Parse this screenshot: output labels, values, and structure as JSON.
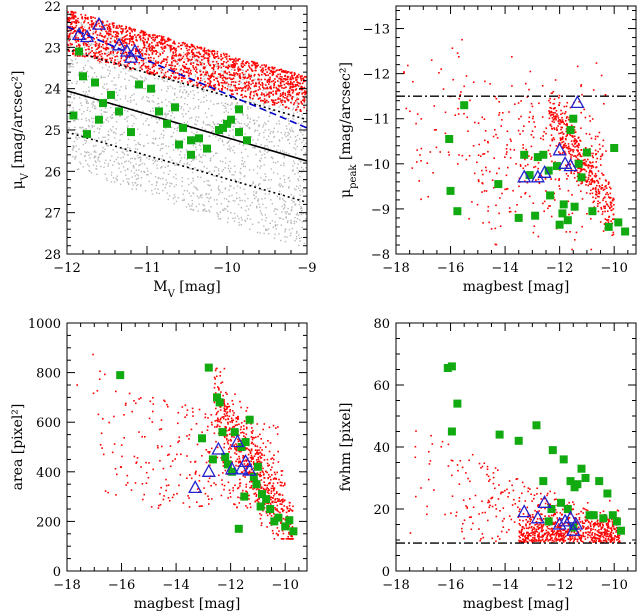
{
  "chart_data": [
    {
      "type": "scatter",
      "id": "p1",
      "xlabel": "M",
      "xlabel_sub": "V",
      "xlabel_unit": " [mag]",
      "ylabel": "μ",
      "ylabel_sub": "V",
      "ylabel_unit": " [mag/arcsec²]",
      "xlim": [
        -12,
        -9
      ],
      "ylim": [
        28,
        22
      ],
      "xticks": [
        -12,
        -11,
        -10,
        -9
      ],
      "xtick_labels": [
        "−12",
        "−11",
        "−10",
        "−9"
      ],
      "yticks": [
        22,
        23,
        24,
        25,
        26,
        27,
        28
      ],
      "ytick_labels": [
        "22",
        "23",
        "24",
        "25",
        "26",
        "27",
        "28"
      ],
      "xminor": 0.2,
      "yminor": 0.2,
      "lines": [
        {
          "name": "solid",
          "x": [
            -12,
            -9
          ],
          "y": [
            24.05,
            25.75
          ],
          "style": "solid",
          "color": "#000000"
        },
        {
          "name": "dotted-upper",
          "x": [
            -12,
            -9
          ],
          "y": [
            23.05,
            24.75
          ],
          "style": "dotted",
          "color": "#000000"
        },
        {
          "name": "dotted-lower",
          "x": [
            -12,
            -9
          ],
          "y": [
            25.05,
            26.75
          ],
          "style": "dotted",
          "color": "#000000"
        },
        {
          "name": "dashed-blue",
          "x": [
            -12,
            -9
          ],
          "y": [
            22.5,
            24.95
          ],
          "style": "dashed",
          "color": "#0000cc"
        }
      ],
      "grey_cloud": {
        "count": 1900,
        "color": "#b8b8b8",
        "x_range": [
          -12,
          -9
        ],
        "y_top": [
          22.3,
          24.0
        ],
        "y_bottom": [
          25.9,
          27.9
        ]
      },
      "red_cloud": {
        "count": 1700,
        "color": "#ff0000",
        "x_range": [
          -12,
          -9
        ],
        "y_top": [
          22.1,
          23.7
        ],
        "y_bottom": [
          23.15,
          24.6
        ]
      },
      "squares": {
        "color": "#11aa11",
        "x": [
          -11.92,
          -11.85,
          -11.65,
          -11.8,
          -11.55,
          -11.45,
          -11.35,
          -11.1,
          -10.95,
          -10.85,
          -10.75,
          -10.65,
          -10.55,
          -10.45,
          -10.35,
          -10.25,
          -10.1,
          -10.05,
          -9.95,
          -9.85,
          -9.75,
          -11.75,
          -11.6,
          -10.6,
          -10.45,
          -11.2,
          -10.0,
          -9.85
        ],
        "y": [
          24.65,
          23.1,
          23.85,
          23.7,
          24.35,
          24.15,
          24.55,
          23.9,
          24.0,
          24.55,
          24.85,
          24.45,
          24.95,
          25.25,
          25.2,
          25.45,
          25.0,
          24.95,
          24.75,
          25.05,
          25.25,
          25.1,
          24.75,
          25.35,
          25.6,
          25.05,
          24.85,
          24.5
        ]
      },
      "triangles": {
        "color": "#2222cc",
        "x": [
          -11.85,
          -11.75,
          -11.6,
          -11.35,
          -11.25,
          -11.2,
          -11.15
        ],
        "y": [
          22.7,
          22.75,
          22.45,
          22.95,
          23.1,
          23.25,
          23.1
        ]
      }
    },
    {
      "type": "scatter",
      "id": "p2",
      "xlabel": "magbest [mag]",
      "ylabel": "μ",
      "ylabel_sub": "peak",
      "ylabel_unit": " [mag/arcsec²]",
      "xlim": [
        -18,
        -9.2
      ],
      "ylim": [
        -8,
        -13.5
      ],
      "xticks": [
        -18,
        -16,
        -14,
        -12,
        -10
      ],
      "xtick_labels": [
        "−18",
        "−16",
        "−14",
        "−12",
        "−10"
      ],
      "yticks": [
        -13,
        -12,
        -11,
        -10,
        -9,
        -8
      ],
      "ytick_labels": [
        "−13",
        "−12",
        "−11",
        "−10",
        "−9",
        "−8"
      ],
      "xminor": 0.5,
      "yminor": 0.2,
      "hline": {
        "y": -11.5,
        "style": "dashdot",
        "color": "#000000"
      },
      "red_cloud": {
        "count": 800,
        "color": "#ff0000"
      },
      "squares": {
        "color": "#11aa11",
        "x": [
          -15.5,
          -16.05,
          -16.0,
          -15.75,
          -14.25,
          -13.5,
          -13.1,
          -12.9,
          -12.8,
          -12.6,
          -12.4,
          -12.35,
          -12.0,
          -11.9,
          -11.85,
          -11.7,
          -11.6,
          -11.5,
          -11.45,
          -11.2,
          -11.0,
          -10.8,
          -10.2,
          -10.0,
          -9.85,
          -9.6,
          -11.3,
          -12.1,
          -13.3
        ],
        "y": [
          -11.3,
          -10.55,
          -9.4,
          -8.95,
          -9.55,
          -8.8,
          -9.75,
          -8.85,
          -10.15,
          -10.2,
          -9.85,
          -9.3,
          -8.65,
          -8.9,
          -9.1,
          -8.75,
          -10.75,
          -11.0,
          -9.05,
          -9.7,
          -10.25,
          -8.95,
          -8.6,
          -10.35,
          -8.7,
          -8.5,
          -10.0,
          -9.95,
          -10.2
        ]
      },
      "triangles": {
        "color": "#2222cc",
        "x": [
          -13.3,
          -12.8,
          -12.55,
          -12.0,
          -11.8,
          -11.6,
          -11.35
        ],
        "y": [
          -9.7,
          -9.7,
          -9.8,
          -10.3,
          -10.0,
          -9.95,
          -11.35
        ]
      }
    },
    {
      "type": "scatter",
      "id": "p3",
      "xlabel": "magbest [mag]",
      "ylabel": "area [pixel²]",
      "xlim": [
        -18,
        -9.2
      ],
      "ylim": [
        0,
        1000
      ],
      "xticks": [
        -18,
        -16,
        -14,
        -12,
        -10
      ],
      "xtick_labels": [
        "−18",
        "−16",
        "−14",
        "−12",
        "−10"
      ],
      "yticks": [
        0,
        200,
        400,
        600,
        800,
        1000
      ],
      "ytick_labels": [
        "0",
        "200",
        "400",
        "600",
        "800",
        "1000"
      ],
      "xminor": 0.5,
      "yminor": 50,
      "red_cloud": {
        "count": 900,
        "color": "#ff0000"
      },
      "squares": {
        "color": "#11aa11",
        "x": [
          -16.05,
          -13.05,
          -12.8,
          -12.5,
          -12.4,
          -12.3,
          -12.2,
          -12.1,
          -11.95,
          -11.85,
          -11.6,
          -11.45,
          -11.3,
          -11.15,
          -11.0,
          -10.85,
          -10.7,
          -10.55,
          -10.4,
          -10.25,
          -10.0,
          -9.85,
          -9.7,
          -11.7,
          -12.65,
          -11.5,
          -10.9,
          -11.05
        ],
        "y": [
          790,
          535,
          820,
          700,
          680,
          560,
          460,
          430,
          400,
          560,
          500,
          520,
          610,
          380,
          420,
          310,
          290,
          250,
          200,
          215,
          180,
          205,
          160,
          170,
          450,
          300,
          260,
          350
        ]
      },
      "triangles": {
        "color": "#2222cc",
        "x": [
          -13.3,
          -12.8,
          -12.45,
          -11.95,
          -11.75,
          -11.6,
          -11.45,
          -11.3
        ],
        "y": [
          335,
          400,
          490,
          410,
          520,
          410,
          440,
          405
        ]
      }
    },
    {
      "type": "scatter",
      "id": "p4",
      "xlabel": "magbest [mag]",
      "ylabel": "fwhm [pixel]",
      "xlim": [
        -18,
        -9.2
      ],
      "ylim": [
        0,
        80
      ],
      "xticks": [
        -18,
        -16,
        -14,
        -12,
        -10
      ],
      "xtick_labels": [
        "−18",
        "−16",
        "−14",
        "−12",
        "−10"
      ],
      "yticks": [
        0,
        20,
        40,
        60,
        80
      ],
      "ytick_labels": [
        "0",
        "20",
        "40",
        "60",
        "80"
      ],
      "xminor": 0.5,
      "yminor": 5,
      "hline": {
        "y": 9,
        "style": "dashdot",
        "color": "#000000"
      },
      "red_cloud": {
        "count": 850,
        "color": "#ff0000"
      },
      "squares": {
        "color": "#11aa11",
        "x": [
          -16.1,
          -15.95,
          -15.75,
          -15.95,
          -14.2,
          -13.5,
          -12.85,
          -12.6,
          -12.3,
          -12.25,
          -11.95,
          -11.85,
          -11.7,
          -11.6,
          -11.45,
          -11.35,
          -11.2,
          -11.05,
          -10.9,
          -10.75,
          -10.55,
          -10.4,
          -10.25,
          -10.05,
          -9.9,
          -9.75,
          -12.4,
          -11.5
        ],
        "y": [
          65.5,
          45,
          54,
          66,
          44,
          42,
          47,
          29,
          20,
          39,
          22,
          36,
          20,
          29,
          27,
          28,
          33,
          30,
          18,
          18,
          29,
          17,
          25,
          18,
          16,
          13,
          16,
          14
        ]
      },
      "triangles": {
        "color": "#2222cc",
        "x": [
          -13.3,
          -12.8,
          -12.55,
          -12.0,
          -11.8,
          -11.6,
          -11.5,
          -11.4
        ],
        "y": [
          19,
          17,
          22,
          15,
          16,
          17,
          13,
          15
        ]
      }
    }
  ]
}
